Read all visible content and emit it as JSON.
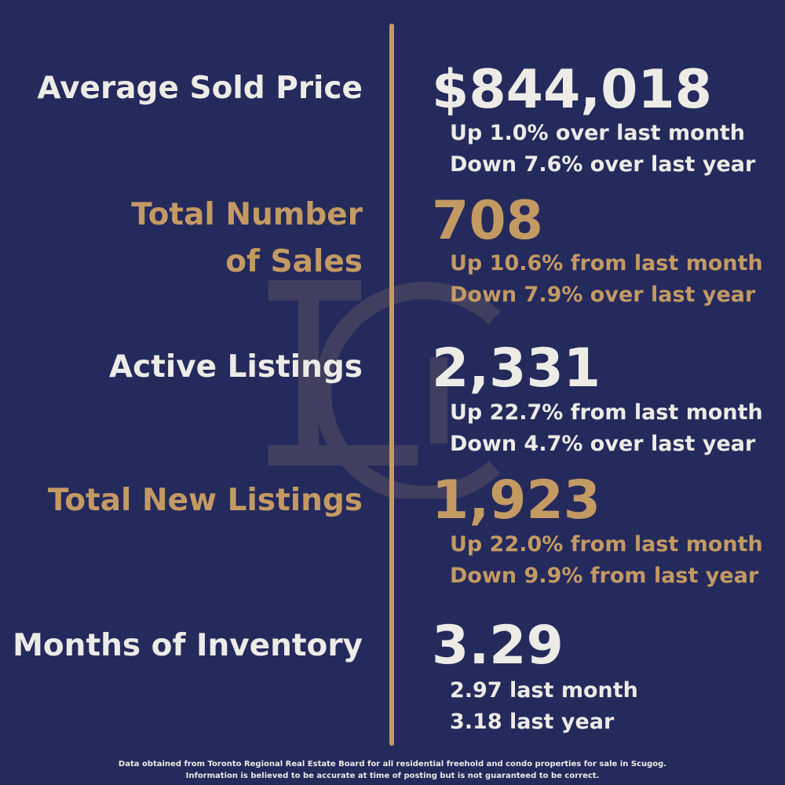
{
  "stats": [
    {
      "label_lines": [
        "Average Sold Price"
      ],
      "value": "$844,018",
      "detail_lines": [
        "Up 1.0% over last month",
        "Down 7.6% over last year"
      ]
    },
    {
      "label_lines": [
        "Total Number",
        "of Sales"
      ],
      "value": "708",
      "detail_lines": [
        "Up 10.6% from last month",
        "Down 7.9% over last year"
      ]
    },
    {
      "label_lines": [
        "Active Listings"
      ],
      "value": "2,331",
      "detail_lines": [
        "Up 22.7% from last month",
        "Down 4.7% over last year"
      ]
    },
    {
      "label_lines": [
        "Total New Listings"
      ],
      "value": "1,923",
      "detail_lines": [
        "Up 22.0% from last month",
        "Down 9.9% from last year"
      ]
    },
    {
      "label_lines": [
        "Months of Inventory"
      ],
      "value": "3.29",
      "detail_lines": [
        "2.97 last month",
        "3.18 last year"
      ]
    }
  ],
  "footer": {
    "line1": "Data obtained from Toronto Regional Real Estate Board for all residential freehold and condo properties for sale in Scugog.",
    "line2": "Information is believed to be accurate at time of posting but is not guaranteed to be correct."
  },
  "colors": {
    "background": "#252a5c",
    "light_text": "#ecebe6",
    "gold_text": "#c49a63",
    "divider": "#c49a63"
  },
  "icons": {
    "watermark": "lc-monogram-watermark"
  }
}
